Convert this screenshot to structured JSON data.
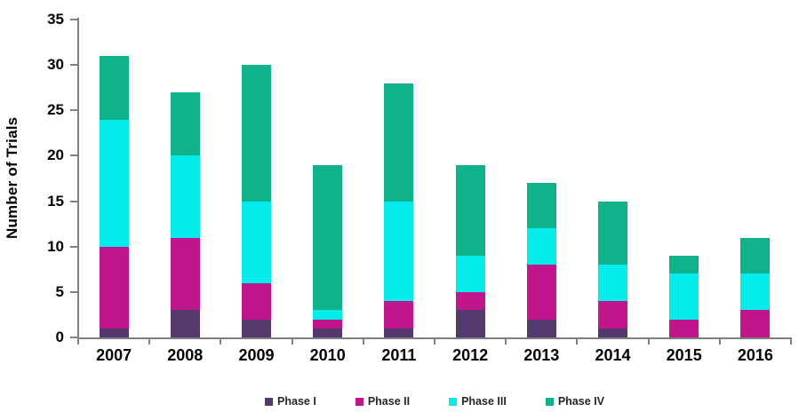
{
  "chart_data": {
    "type": "bar",
    "stacked": true,
    "title": "",
    "xlabel": "",
    "ylabel": "Number of Trials",
    "ylim": [
      0,
      35
    ],
    "yticks": [
      0,
      5,
      10,
      15,
      20,
      25,
      30,
      35
    ],
    "grid": false,
    "legend_position": "bottom-center",
    "categories": [
      "2007",
      "2008",
      "2009",
      "2010",
      "2011",
      "2012",
      "2013",
      "2014",
      "2015",
      "2016"
    ],
    "series": [
      {
        "name": "Phase I",
        "color": "#54396E",
        "values": [
          1,
          3,
          2,
          1,
          1,
          3,
          2,
          1,
          0,
          0
        ]
      },
      {
        "name": "Phase II",
        "color": "#C1158B",
        "values": [
          9,
          8,
          4,
          1,
          3,
          2,
          6,
          3,
          2,
          3
        ]
      },
      {
        "name": "Phase III",
        "color": "#05ECEC",
        "values": [
          14,
          9,
          9,
          1,
          11,
          4,
          4,
          4,
          5,
          4
        ]
      },
      {
        "name": "Phase IV",
        "color": "#0FB28A",
        "values": [
          7,
          7,
          15,
          16,
          13,
          10,
          5,
          7,
          2,
          4
        ]
      }
    ]
  },
  "style": {
    "axis_color": "#7F7F7F",
    "tick_text_color": "#000000",
    "legend_text_color": "#262626",
    "background_color": "#FFFFFF"
  }
}
